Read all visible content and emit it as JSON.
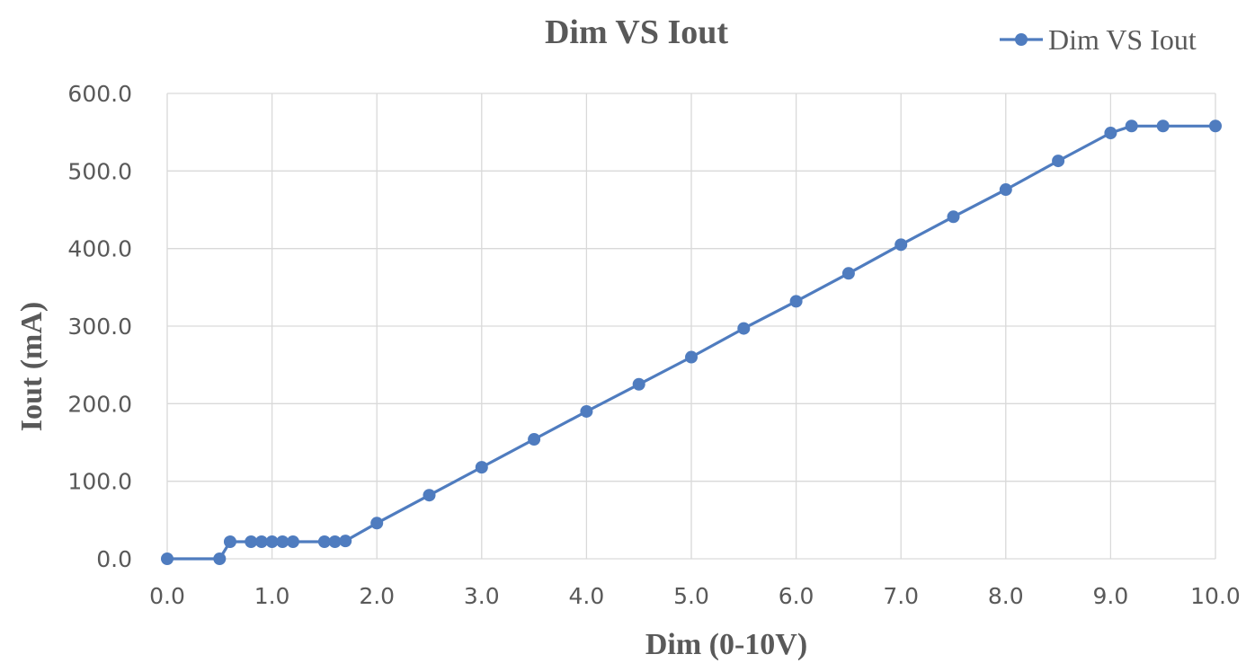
{
  "chart_data": {
    "type": "line",
    "title": "Dim VS Iout",
    "xlabel": "Dim (0-10V)",
    "ylabel": "Iout (mA)",
    "xlim": [
      0,
      10
    ],
    "ylim": [
      0,
      600
    ],
    "xticks": [
      "0.0",
      "1.0",
      "2.0",
      "3.0",
      "4.0",
      "5.0",
      "6.0",
      "7.0",
      "8.0",
      "9.0",
      "10.0"
    ],
    "yticks": [
      "0.0",
      "100.0",
      "200.0",
      "300.0",
      "400.0",
      "500.0",
      "600.0"
    ],
    "grid": true,
    "legend_position": "top-right",
    "series": [
      {
        "name": "Dim VS Iout",
        "color": "#4f7cbf",
        "x": [
          0.0,
          0.5,
          0.6,
          0.8,
          0.9,
          1.0,
          1.1,
          1.2,
          1.5,
          1.6,
          1.7,
          2.0,
          2.5,
          3.0,
          3.5,
          4.0,
          4.5,
          5.0,
          5.5,
          6.0,
          6.5,
          7.0,
          7.5,
          8.0,
          8.5,
          9.0,
          9.2,
          9.5,
          10.0
        ],
        "y": [
          0,
          0,
          22,
          22,
          22,
          22,
          22,
          22,
          22,
          22,
          23,
          46,
          82,
          118,
          154,
          190,
          225,
          260,
          297,
          332,
          368,
          405,
          441,
          476,
          513,
          549,
          558,
          558,
          558
        ]
      }
    ]
  }
}
